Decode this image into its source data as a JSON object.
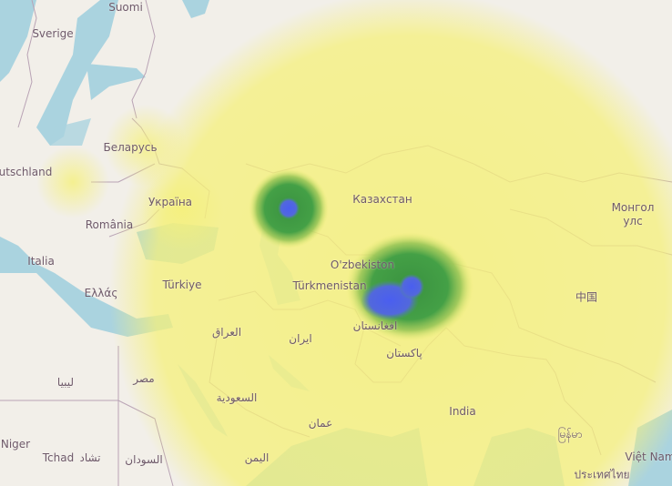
{
  "map": {
    "type": "heatmap-overlay",
    "colors": {
      "land": "#f2efe9",
      "water": "#aad3df",
      "heat_low": "#f5f08a",
      "heat_mid": "#3f9a3f",
      "heat_high": "#5060e0",
      "border": "#b9a3b5"
    },
    "labels": [
      {
        "id": "suomi",
        "text": "Suomi"
      },
      {
        "id": "sverige",
        "text": "Sverige"
      },
      {
        "id": "belarus",
        "text": "Беларусь"
      },
      {
        "id": "deutschland",
        "text": "utschland"
      },
      {
        "id": "ukraina",
        "text": "Україна"
      },
      {
        "id": "romania",
        "text": "România"
      },
      {
        "id": "italia",
        "text": "Italia"
      },
      {
        "id": "ellas",
        "text": "Ελλάς"
      },
      {
        "id": "turkiye",
        "text": "Türkiye"
      },
      {
        "id": "kazakhstan",
        "text": "Казахстан"
      },
      {
        "id": "mongol1",
        "text": "Монгол"
      },
      {
        "id": "mongol2",
        "text": "улс"
      },
      {
        "id": "uzbekiston",
        "text": "O'zbekiston"
      },
      {
        "id": "turkmenistan",
        "text": "Türkmenistan"
      },
      {
        "id": "afghanistan",
        "text": "افغانستان"
      },
      {
        "id": "iraq",
        "text": "العراق"
      },
      {
        "id": "iran",
        "text": "ايران"
      },
      {
        "id": "pakistan",
        "text": "پاکستان"
      },
      {
        "id": "misr",
        "text": "مصر"
      },
      {
        "id": "libya",
        "text": "ليبيا"
      },
      {
        "id": "india",
        "text": "India"
      },
      {
        "id": "saudi",
        "text": "السعودية"
      },
      {
        "id": "oman",
        "text": "عمان"
      },
      {
        "id": "niger",
        "text": "Niger"
      },
      {
        "id": "tchad",
        "text": "Tchad"
      },
      {
        "id": "tchad_ar",
        "text": "تشاد"
      },
      {
        "id": "sudan",
        "text": "السودان"
      },
      {
        "id": "yemen",
        "text": "اليمن"
      },
      {
        "id": "china",
        "text": "中国"
      },
      {
        "id": "myanmar",
        "text": "မြန်မာ"
      },
      {
        "id": "vietnam",
        "text": "Việt Nam"
      },
      {
        "id": "thailand",
        "text": "ประเทศไทย"
      }
    ]
  }
}
